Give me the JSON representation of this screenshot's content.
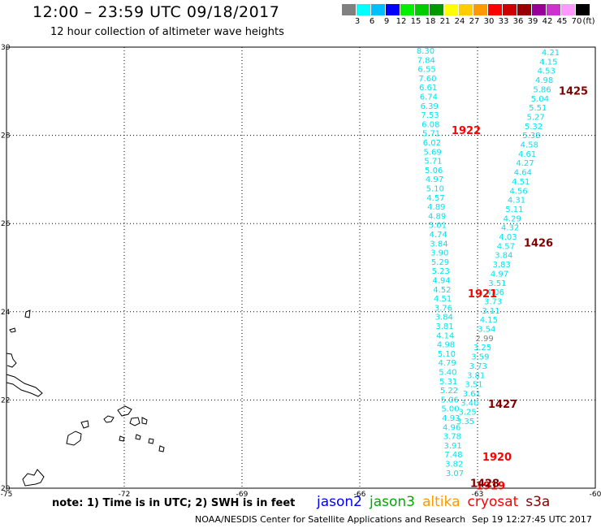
{
  "header": {
    "title": "12:00 – 23:59 UTC 09/18/2017",
    "subtitle": "12 hour collection of altimeter wave heights"
  },
  "color_scale": {
    "unit": "(ft)",
    "bins": [
      {
        "label": "3",
        "color": "#808080"
      },
      {
        "label": "6",
        "color": "#00ffff"
      },
      {
        "label": "9",
        "color": "#00bfff"
      },
      {
        "label": "12",
        "color": "#0000ff"
      },
      {
        "label": "15",
        "color": "#00ee00"
      },
      {
        "label": "18",
        "color": "#00cc00"
      },
      {
        "label": "21",
        "color": "#009900"
      },
      {
        "label": "24",
        "color": "#ffff00"
      },
      {
        "label": "27",
        "color": "#ffcc00"
      },
      {
        "label": "30",
        "color": "#ff9900"
      },
      {
        "label": "33",
        "color": "#ff0000"
      },
      {
        "label": "36",
        "color": "#cc0000"
      },
      {
        "label": "39",
        "color": "#990000"
      },
      {
        "label": "42",
        "color": "#990099"
      },
      {
        "label": "45",
        "color": "#cc33cc"
      },
      {
        "label": "70",
        "color": "#ff99ff"
      },
      {
        "label": "",
        "color": "#000000"
      }
    ]
  },
  "axes": {
    "lon_labels": [
      "-75",
      "-72",
      "-69",
      "-66",
      "-63",
      "-60"
    ],
    "lat_labels": [
      "30",
      "28",
      "26",
      "24",
      "22",
      "20"
    ],
    "lon_range": [
      -75,
      -60
    ],
    "lat_range": [
      20,
      30
    ]
  },
  "tracks": {
    "colors": {
      "cyan": "#00e5ee",
      "red": "#ff0000",
      "maroon": "#800000",
      "gray": "#808080"
    },
    "track_a": {
      "values": [
        "8.30",
        "7.84",
        "6.55",
        "7.60",
        "6.61",
        "6.74",
        "6.39",
        "7.53",
        "6.08",
        "5.71",
        "6.02",
        "5.69",
        "5.71",
        "5.06",
        "4.97",
        "5.10",
        "4.57",
        "4.89",
        "4.89",
        "5.01",
        "4.74",
        "3.84",
        "3.90",
        "5.29",
        "5.23",
        "4.94",
        "4.52",
        "4.51",
        "3.76",
        "3.84",
        "3.81",
        "4.14",
        "4.98",
        "5.10",
        "4.79",
        "5.40",
        "5.31",
        "5.22",
        "5.06",
        "5.00",
        "4.93",
        "4.96",
        "3.78",
        "3.91",
        "7.48",
        "3.82",
        "3.07"
      ],
      "time_labels": [
        {
          "text": "1922",
          "lat": 28.1
        },
        {
          "text": "1921",
          "lat": 24.4
        },
        {
          "text": "1920",
          "lat": 20.7
        },
        {
          "text": "1919",
          "lat": 20.05
        }
      ]
    },
    "track_b": {
      "values": [
        "4.21",
        "4.15",
        "4.53",
        "4.98",
        "5.86",
        "5.04",
        "5.51",
        "5.27",
        "5.32",
        "5.38",
        "4.58",
        "4.61",
        "4.27",
        "4.64",
        "4.51",
        "4.56",
        "4.31",
        "5.11",
        "4.29",
        "4.32",
        "4.03",
        "4.57",
        "3.84",
        "3.83",
        "4.97",
        "3.51",
        "4.06",
        "3.73",
        "3.11",
        "4.15",
        "3.54",
        "2.99",
        "3.25",
        "3.59",
        "3.73",
        "3.81",
        "3.51",
        "3.61",
        "3.40",
        "3.25",
        "3.35"
      ],
      "time_labels": [
        {
          "text": "1425",
          "lat": 29.0
        },
        {
          "text": "1426",
          "lat": 25.55
        },
        {
          "text": "1427",
          "lat": 21.9
        },
        {
          "text": "1428",
          "lat": 20.1
        }
      ]
    }
  },
  "footer": {
    "note": "note:  1)  Time is in UTC;  2)  SWH is in feet",
    "legend": [
      {
        "name": "jason2",
        "color": "#0000ff"
      },
      {
        "name": "jason3",
        "color": "#00aa00"
      },
      {
        "name": "altika",
        "color": "#ff9900"
      },
      {
        "name": "cryosat",
        "color": "#ff0000"
      },
      {
        "name": "s3a",
        "color": "#880000"
      }
    ],
    "credit": "NOAA/NESDIS Center for Satellite Applications and Research",
    "timestamp": "Sep 19 12:27:45 UTC 2017"
  }
}
